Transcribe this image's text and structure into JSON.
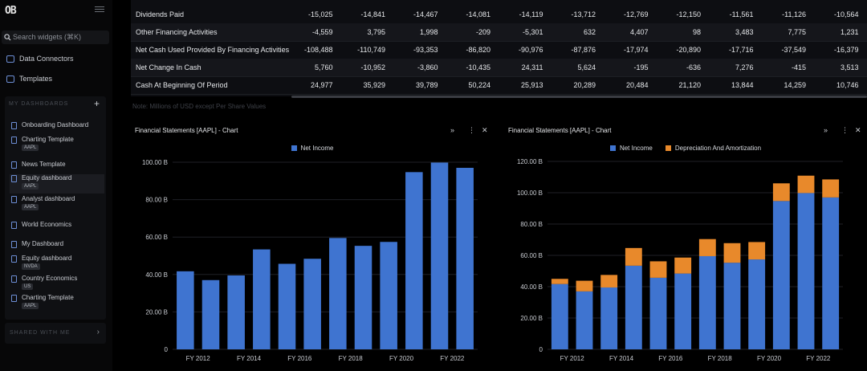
{
  "app": {
    "brand": "OB"
  },
  "sidebar": {
    "search_placeholder": "Search widgets (⌘K)",
    "nav": [
      {
        "label": "Data Connectors"
      },
      {
        "label": "Templates"
      }
    ],
    "my_dashboards_title": "MY DASHBOARDS",
    "dashboards": [
      {
        "label": "Onboarding Dashboard",
        "tag": ""
      },
      {
        "label": "Charting Template",
        "tag": "AAPL"
      },
      {
        "label": "News Template",
        "tag": ""
      },
      {
        "label": "Equity dashboard",
        "tag": "AAPL"
      },
      {
        "label": "Analyst dashboard",
        "tag": "AAPL"
      },
      {
        "label": "World Economics",
        "tag": ""
      },
      {
        "label": "My Dashboard",
        "tag": ""
      },
      {
        "label": "Equity dashboard",
        "tag": "NVDA"
      },
      {
        "label": "Country Economics",
        "tag": "US"
      },
      {
        "label": "Charting Template",
        "tag": "AAPL"
      }
    ],
    "shared_title": "SHARED WITH ME"
  },
  "table": {
    "rows": [
      {
        "label": "Dividends Paid",
        "values": [
          "-15,025",
          "-14,841",
          "-14,467",
          "-14,081",
          "-14,119",
          "-13,712",
          "-12,769",
          "-12,150",
          "-11,561",
          "-11,126",
          "-10,564"
        ]
      },
      {
        "label": "Other Financing Activities",
        "values": [
          "-4,559",
          "3,795",
          "1,998",
          "-209",
          "-5,301",
          "632",
          "4,407",
          "98",
          "3,483",
          "7,775",
          "1,231"
        ]
      },
      {
        "label": "Net Cash Used Provided By Financing Activities",
        "values": [
          "-108,488",
          "-110,749",
          "-93,353",
          "-86,820",
          "-90,976",
          "-87,876",
          "-17,974",
          "-20,890",
          "-17,716",
          "-37,549",
          "-16,379"
        ]
      },
      {
        "label": "Net Change In Cash",
        "values": [
          "5,760",
          "-10,952",
          "-3,860",
          "-10,435",
          "24,311",
          "5,624",
          "-195",
          "-636",
          "7,276",
          "-415",
          "3,513"
        ]
      },
      {
        "label": "Cash At Beginning Of Period",
        "values": [
          "24,977",
          "35,929",
          "39,789",
          "50,224",
          "25,913",
          "20,289",
          "20,484",
          "21,120",
          "13,844",
          "14,259",
          "10,746"
        ]
      }
    ],
    "note": "Note: Millions of USD except Per Share Values"
  },
  "chart_left": {
    "title": "Financial Statements [AAPL] - Chart"
  },
  "chart_right": {
    "title": "Financial Statements [AAPL] - Chart"
  },
  "colors": {
    "net_income": "#3f74d0",
    "depreciation": "#e8892b",
    "grid": "#1f2126",
    "axis_text": "#c9ccd2"
  },
  "chart_data": [
    {
      "type": "bar",
      "title": "Financial Statements [AAPL] - Chart",
      "categories": [
        "FY 2012",
        "FY 2013",
        "FY 2014",
        "FY 2015",
        "FY 2016",
        "FY 2017",
        "FY 2018",
        "FY 2019",
        "FY 2020",
        "FY 2021",
        "FY 2022",
        "FY 2023"
      ],
      "x_tick_labels": [
        "FY 2012",
        "FY 2014",
        "FY 2016",
        "FY 2018",
        "FY 2020",
        "FY 2022"
      ],
      "series": [
        {
          "name": "Net Income",
          "values": [
            41.7,
            37.0,
            39.5,
            53.4,
            45.7,
            48.4,
            59.5,
            55.3,
            57.4,
            94.7,
            99.8,
            97.0
          ]
        }
      ],
      "y_ticks": [
        "0",
        "20.00 B",
        "40.00 B",
        "60.00 B",
        "80.00 B",
        "100.00 B"
      ],
      "ylim": [
        0,
        100
      ],
      "legend": "top-center"
    },
    {
      "type": "bar",
      "stacked": true,
      "title": "Financial Statements [AAPL] - Chart",
      "categories": [
        "FY 2012",
        "FY 2013",
        "FY 2014",
        "FY 2015",
        "FY 2016",
        "FY 2017",
        "FY 2018",
        "FY 2019",
        "FY 2020",
        "FY 2021",
        "FY 2022",
        "FY 2023"
      ],
      "x_tick_labels": [
        "FY 2012",
        "FY 2014",
        "FY 2016",
        "FY 2018",
        "FY 2020",
        "FY 2022"
      ],
      "series": [
        {
          "name": "Net Income",
          "values": [
            41.7,
            37.0,
            39.5,
            53.4,
            45.7,
            48.4,
            59.5,
            55.3,
            57.4,
            94.7,
            99.8,
            97.0
          ]
        },
        {
          "name": "Depreciation And Amortization",
          "values": [
            3.3,
            6.8,
            8.0,
            11.3,
            10.5,
            10.2,
            10.9,
            12.5,
            11.1,
            11.3,
            11.1,
            11.5
          ]
        }
      ],
      "y_ticks": [
        "0",
        "20.00 B",
        "40.00 B",
        "60.00 B",
        "80.00 B",
        "100.00 B",
        "120.00 B"
      ],
      "ylim": [
        0,
        120
      ],
      "legend": "top-center"
    }
  ]
}
